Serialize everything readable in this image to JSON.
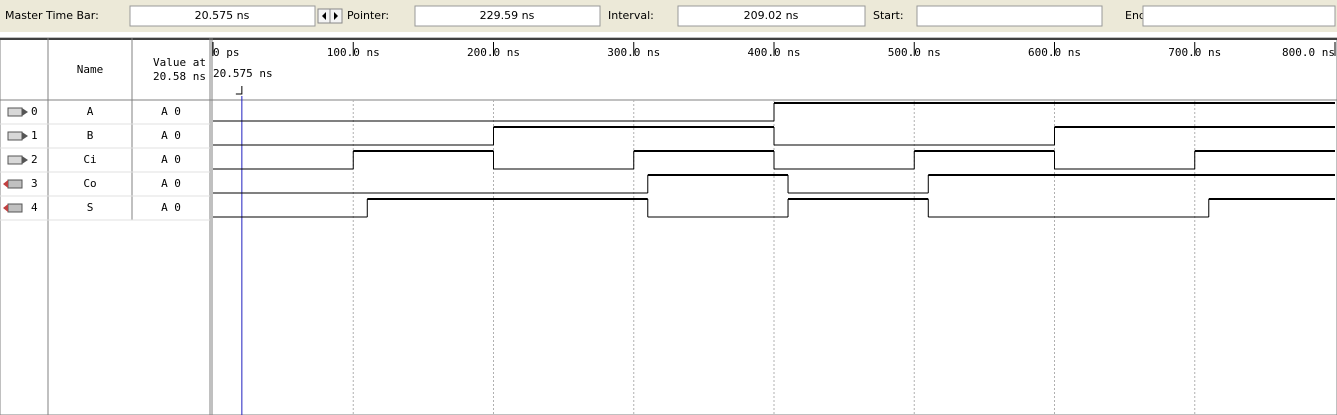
{
  "toolbar": {
    "master_label": "Master Time Bar:",
    "master_value": "20.575 ns",
    "pointer_label": "Pointer:",
    "pointer_value": "229.59 ns",
    "interval_label": "Interval:",
    "interval_value": "209.02 ns",
    "start_label": "Start:",
    "end_label": "End:"
  },
  "columns": {
    "name": "Name",
    "value_line1": "Value at",
    "value_line2": "20.58 ns"
  },
  "ruler": {
    "xlim": [
      0,
      800
    ],
    "ticks": [
      {
        "value": 0,
        "label": "0 ps"
      },
      {
        "value": 100,
        "label": "100.0 ns"
      },
      {
        "value": 200,
        "label": "200.0 ns"
      },
      {
        "value": 300,
        "label": "300.0 ns"
      },
      {
        "value": 400,
        "label": "400.0 ns"
      },
      {
        "value": 500,
        "label": "500.0 ns"
      },
      {
        "value": 600,
        "label": "600.0 ns"
      },
      {
        "value": 700,
        "label": "700.0 ns"
      },
      {
        "value": 800,
        "label": "800.0 ns"
      }
    ],
    "cursor": {
      "value": 20.575,
      "label": "20.575 ns"
    }
  },
  "signals": [
    {
      "index": "0",
      "direction": "in",
      "name": "A",
      "value": "A 0",
      "initial_level": 0,
      "edges": [
        400
      ]
    },
    {
      "index": "1",
      "direction": "in",
      "name": "B",
      "value": "A 0",
      "initial_level": 0,
      "edges": [
        200,
        400,
        600
      ]
    },
    {
      "index": "2",
      "direction": "in",
      "name": "Ci",
      "value": "A 0",
      "initial_level": 0,
      "edges": [
        100,
        200,
        300,
        400,
        500,
        600,
        700
      ]
    },
    {
      "index": "3",
      "direction": "out",
      "name": "Co",
      "value": "A 0",
      "initial_level": 0,
      "edges": [
        310,
        410,
        510
      ]
    },
    {
      "index": "4",
      "direction": "out",
      "name": "S",
      "value": "A 0",
      "initial_level": 0,
      "edges": [
        110,
        310,
        410,
        510,
        710
      ]
    }
  ]
}
